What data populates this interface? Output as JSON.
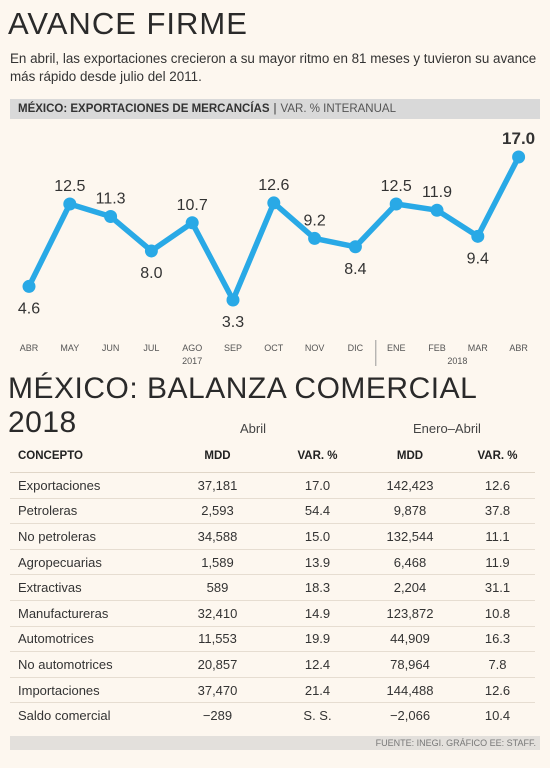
{
  "header": {
    "title": "AVANCE FIRME",
    "subtitle": "En abril, las exportaciones crecieron a su mayor ritmo en 81 meses y tuvieron su avance más rápido desde julio del 2011."
  },
  "chart_data": {
    "type": "line",
    "title": "MÉXICO: EXPORTACIONES DE MERCANCÍAS",
    "separator": "|",
    "units": "VAR. % INTERANUAL",
    "categories": [
      "ABR",
      "MAY",
      "JUN",
      "JUL",
      "AGO",
      "SEP",
      "OCT",
      "NOV",
      "DIC",
      "ENE",
      "FEB",
      "MAR",
      "ABR"
    ],
    "values": [
      4.6,
      12.5,
      11.3,
      8.0,
      10.7,
      3.3,
      12.6,
      9.2,
      8.4,
      12.5,
      11.9,
      9.4,
      17.0
    ],
    "labels": [
      "4.6",
      "12.5",
      "11.3",
      "8.0",
      "10.7",
      "3.3",
      "12.6",
      "9.2",
      "8.4",
      "12.5",
      "11.9",
      "9.4",
      "17.0"
    ],
    "year_labels": [
      "2017",
      "2018"
    ],
    "ylim": [
      3.3,
      17.0
    ],
    "grid": false,
    "line_color": "#29a9e6"
  },
  "table": {
    "title": "MÉXICO: BALANZA COMERCIAL 2018",
    "group1": "Abril",
    "group2": "Enero–Abril",
    "headers": [
      "CONCEPTO",
      "MDD",
      "VAR. %",
      "MDD",
      "VAR. %"
    ],
    "rows": [
      [
        "Exportaciones",
        "37,181",
        "17.0",
        "142,423",
        "12.6"
      ],
      [
        "Petroleras",
        "2,593",
        "54.4",
        "9,878",
        "37.8"
      ],
      [
        "No petroleras",
        "34,588",
        "15.0",
        "132,544",
        "11.1"
      ],
      [
        "Agropecuarias",
        "1,589",
        "13.9",
        "6,468",
        "11.9"
      ],
      [
        "Extractivas",
        "589",
        "18.3",
        "2,204",
        "31.1"
      ],
      [
        "Manufactureras",
        "32,410",
        "14.9",
        "123,872",
        "10.8"
      ],
      [
        "Automotrices",
        "11,553",
        "19.9",
        "44,909",
        "16.3"
      ],
      [
        "No automotrices",
        "20,857",
        "12.4",
        "78,964",
        "7.8"
      ],
      [
        "Importaciones",
        "37,470",
        "21.4",
        "144,488",
        "12.6"
      ],
      [
        "Saldo comercial",
        "−289",
        "S. S.",
        "−2,066",
        "10.4"
      ]
    ]
  },
  "source": "FUENTE: INEGI. GRÁFICO EE: STAFF."
}
